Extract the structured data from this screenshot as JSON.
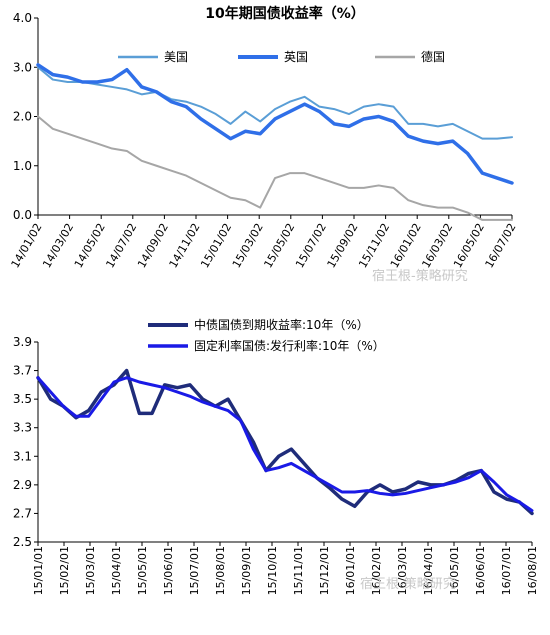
{
  "charts": {
    "top": {
      "title": "10年期国债收益率（%）",
      "watermark": "宿王根-策略研究"
    },
    "bottom": {
      "watermark": "宿王根-策略研究"
    }
  },
  "chart_data": [
    {
      "type": "line",
      "title": "10年期国债收益率（%）",
      "xlabel": "",
      "ylabel": "",
      "x_ticks": [
        "14/01/02",
        "14/03/02",
        "14/05/02",
        "14/07/02",
        "14/09/02",
        "14/11/02",
        "15/01/02",
        "15/03/02",
        "15/05/02",
        "15/07/02",
        "15/09/02",
        "15/11/02",
        "16/01/02",
        "16/03/02",
        "16/05/02",
        "16/07/02"
      ],
      "y_ticks": [
        "4.0",
        "3.0",
        "2.0",
        "1.0",
        "0.0"
      ],
      "ylim": [
        0,
        4
      ],
      "legend": "top",
      "grid": false,
      "x": [
        "14/01/02",
        "14/02/02",
        "14/03/02",
        "14/04/02",
        "14/05/02",
        "14/06/02",
        "14/07/02",
        "14/08/02",
        "14/09/02",
        "14/10/02",
        "14/11/02",
        "14/12/02",
        "15/01/02",
        "15/02/02",
        "15/03/02",
        "15/04/02",
        "15/05/02",
        "15/06/02",
        "15/07/02",
        "15/08/02",
        "15/09/02",
        "15/10/02",
        "15/11/02",
        "15/12/02",
        "16/01/02",
        "16/02/02",
        "16/03/02",
        "16/04/02",
        "16/05/02",
        "16/06/02",
        "16/07/02",
        "16/08/02",
        "16/08/25"
      ],
      "series": [
        {
          "name": "美国",
          "color": "#5a9ed6",
          "values": [
            3.0,
            2.75,
            2.7,
            2.7,
            2.65,
            2.6,
            2.55,
            2.45,
            2.5,
            2.35,
            2.3,
            2.2,
            2.05,
            1.85,
            2.1,
            1.9,
            2.15,
            2.3,
            2.4,
            2.2,
            2.15,
            2.05,
            2.2,
            2.25,
            2.2,
            1.85,
            1.85,
            1.8,
            1.85,
            1.7,
            1.55,
            1.55,
            1.58
          ]
        },
        {
          "name": "英国",
          "color": "#2f6fe8",
          "values": [
            3.05,
            2.85,
            2.8,
            2.7,
            2.7,
            2.75,
            2.95,
            2.6,
            2.5,
            2.3,
            2.2,
            1.95,
            1.75,
            1.55,
            1.7,
            1.65,
            1.95,
            2.1,
            2.25,
            2.1,
            1.85,
            1.8,
            1.95,
            2.0,
            1.9,
            1.6,
            1.5,
            1.45,
            1.5,
            1.25,
            0.85,
            0.75,
            0.65
          ]
        },
        {
          "name": "德国",
          "color": "#a6a6a6",
          "values": [
            2.0,
            1.75,
            1.65,
            1.55,
            1.45,
            1.35,
            1.3,
            1.1,
            1.0,
            0.9,
            0.8,
            0.65,
            0.5,
            0.35,
            0.3,
            0.15,
            0.75,
            0.85,
            0.85,
            0.75,
            0.65,
            0.55,
            0.55,
            0.6,
            0.55,
            0.3,
            0.2,
            0.15,
            0.15,
            0.05,
            -0.1,
            -0.1,
            -0.1
          ]
        }
      ]
    },
    {
      "type": "line",
      "title": "",
      "xlabel": "",
      "ylabel": "",
      "x_ticks": [
        "15/01/01",
        "15/02/01",
        "15/03/01",
        "15/04/01",
        "15/05/01",
        "15/06/01",
        "15/07/01",
        "15/08/01",
        "15/09/01",
        "15/10/01",
        "15/11/01",
        "15/12/01",
        "16/01/01",
        "16/02/01",
        "16/03/01",
        "16/04/01",
        "16/05/01",
        "16/06/01",
        "16/07/01",
        "16/08/01"
      ],
      "y_ticks": [
        "3.9",
        "3.7",
        "3.5",
        "3.3",
        "3.1",
        "2.9",
        "2.7",
        "2.5"
      ],
      "ylim": [
        2.5,
        3.9
      ],
      "legend": "top",
      "grid": false,
      "x": [
        "15/01/01",
        "15/01/15",
        "15/02/01",
        "15/02/15",
        "15/03/01",
        "15/03/15",
        "15/04/01",
        "15/04/15",
        "15/05/01",
        "15/05/15",
        "15/06/01",
        "15/06/15",
        "15/07/01",
        "15/07/15",
        "15/08/01",
        "15/08/15",
        "15/09/01",
        "15/09/15",
        "15/10/01",
        "15/10/15",
        "15/11/01",
        "15/11/15",
        "15/12/01",
        "15/12/15",
        "16/01/01",
        "16/01/15",
        "16/02/01",
        "16/02/15",
        "16/03/01",
        "16/03/15",
        "16/04/01",
        "16/04/15",
        "16/05/01",
        "16/05/15",
        "16/06/01",
        "16/06/15",
        "16/07/01",
        "16/07/15",
        "16/08/01",
        "16/08/15"
      ],
      "series": [
        {
          "name": "中债国债到期收益率:10年（%）",
          "color": "#1f2c7a",
          "values": [
            3.65,
            3.5,
            3.45,
            3.37,
            3.42,
            3.55,
            3.6,
            3.7,
            3.4,
            3.4,
            3.6,
            3.58,
            3.6,
            3.5,
            3.45,
            3.5,
            3.35,
            3.2,
            3.0,
            3.1,
            3.15,
            3.05,
            2.95,
            2.88,
            2.8,
            2.75,
            2.85,
            2.9,
            2.85,
            2.87,
            2.92,
            2.9,
            2.9,
            2.93,
            2.98,
            3.0,
            2.85,
            2.8,
            2.78,
            2.7
          ]
        },
        {
          "name": "固定利率国债:发行利率:10年（%）",
          "color": "#1a1ae6",
          "values": [
            3.65,
            3.55,
            3.45,
            3.38,
            3.38,
            3.5,
            3.62,
            3.65,
            3.62,
            3.6,
            3.58,
            3.55,
            3.52,
            3.48,
            3.45,
            3.42,
            3.35,
            3.15,
            3.0,
            3.02,
            3.05,
            3.0,
            2.95,
            2.9,
            2.85,
            2.85,
            2.86,
            2.84,
            2.83,
            2.84,
            2.86,
            2.88,
            2.9,
            2.92,
            2.95,
            3.0,
            2.92,
            2.83,
            2.78,
            2.72
          ]
        }
      ]
    }
  ]
}
